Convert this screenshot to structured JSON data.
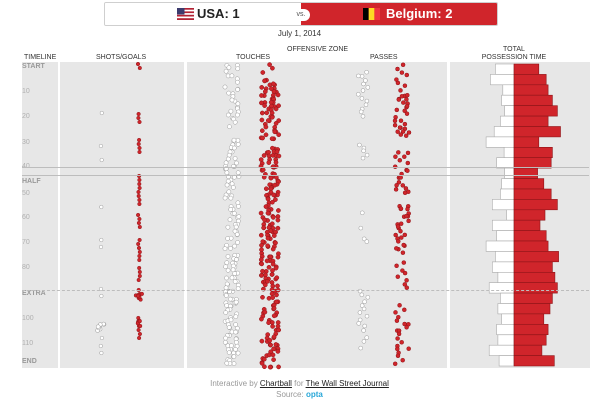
{
  "scoreboard": {
    "team_a": "USA: 1",
    "vs": "vs.",
    "team_b": "Belgium: 2",
    "team_a_flag": "usa-flag-icon",
    "team_b_flag": "belgium-flag-icon",
    "team_a_color": "#ffffff",
    "team_b_color": "#d0252b"
  },
  "date": "July 1, 2014",
  "headers": {
    "timeline": "TIMELINE",
    "shots": "SHOTS/GOALS",
    "offensive_zone": "OFFENSIVE ZONE",
    "touches": "TOUCHES",
    "passes": "PASSES",
    "possession_1": "TOTAL",
    "possession_2": "POSSESSION TIME"
  },
  "timeline_ticks": [
    {
      "label": "START",
      "bold": true
    },
    {
      "label": "10",
      "bold": false
    },
    {
      "label": "20",
      "bold": false
    },
    {
      "label": "30",
      "bold": false
    },
    {
      "label": "40",
      "bold": false
    },
    {
      "label": "HALF",
      "bold": true
    },
    {
      "label": "50",
      "bold": false
    },
    {
      "label": "60",
      "bold": false
    },
    {
      "label": "70",
      "bold": false
    },
    {
      "label": "80",
      "bold": false
    },
    {
      "label": "EXTRA",
      "bold": true
    },
    {
      "label": "100",
      "bold": false
    },
    {
      "label": "110",
      "bold": false
    },
    {
      "label": "END",
      "bold": true
    }
  ],
  "colors": {
    "usa": "#ffffff",
    "belgium": "#d0252b",
    "panel": "#e7e7e7"
  },
  "possession": {
    "usa_pct": [
      30,
      38,
      18,
      20,
      15,
      22,
      32,
      45,
      16,
      28,
      15,
      20,
      22,
      35,
      12,
      35,
      28,
      45,
      30,
      35,
      26,
      40,
      22,
      26,
      20,
      28,
      26,
      40,
      24
    ],
    "bel_pct": [
      40,
      52,
      55,
      62,
      70,
      55,
      75,
      40,
      62,
      60,
      38,
      48,
      60,
      70,
      50,
      42,
      52,
      55,
      72,
      62,
      66,
      70,
      62,
      58,
      48,
      55,
      52,
      45,
      65
    ]
  },
  "footer": {
    "line1_prefix": "Interactive by",
    "chartball": "Chartball",
    "for_text": "for",
    "wsj": "The Wall Street Journal",
    "source_label": "Source:",
    "opta": "opta"
  }
}
